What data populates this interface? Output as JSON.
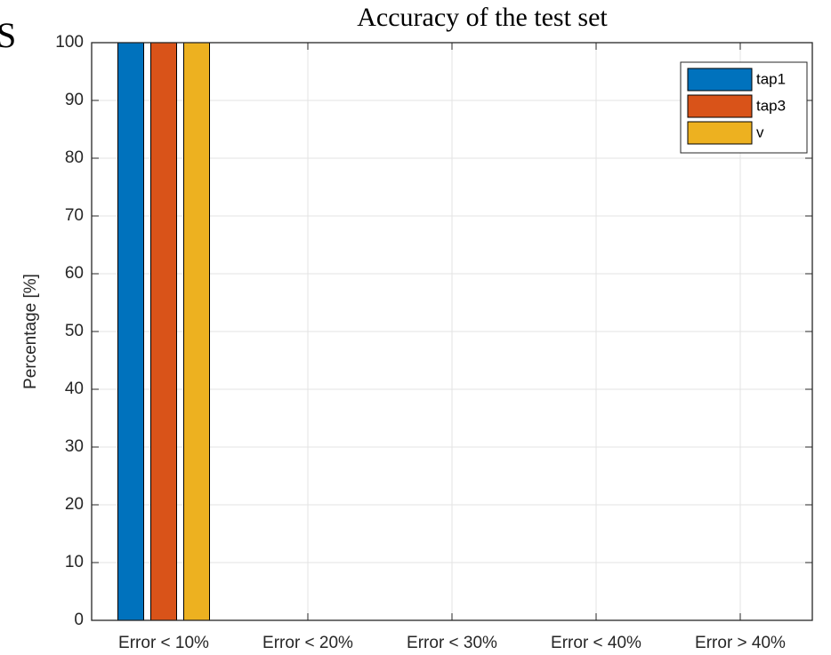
{
  "chart_data": {
    "type": "bar",
    "title": "Accuracy of the test set",
    "annotation": "S",
    "ylabel": "Percentage [%]",
    "categories": [
      "Error < 10%",
      "Error < 20%",
      "Error < 30%",
      "Error < 40%",
      "Error > 40%"
    ],
    "series": [
      {
        "name": "tap1",
        "color": "#0072bd",
        "values": [
          100,
          0,
          0,
          0,
          0
        ]
      },
      {
        "name": "tap3",
        "color": "#d95319",
        "values": [
          100,
          0,
          0,
          0,
          0
        ]
      },
      {
        "name": "v",
        "color": "#edb120",
        "values": [
          100,
          0,
          0,
          0,
          0
        ]
      }
    ],
    "ylim": [
      0,
      100
    ],
    "yticks": [
      0,
      10,
      20,
      30,
      40,
      50,
      60,
      70,
      80,
      90,
      100
    ],
    "grid": true,
    "legend": "northeast"
  }
}
